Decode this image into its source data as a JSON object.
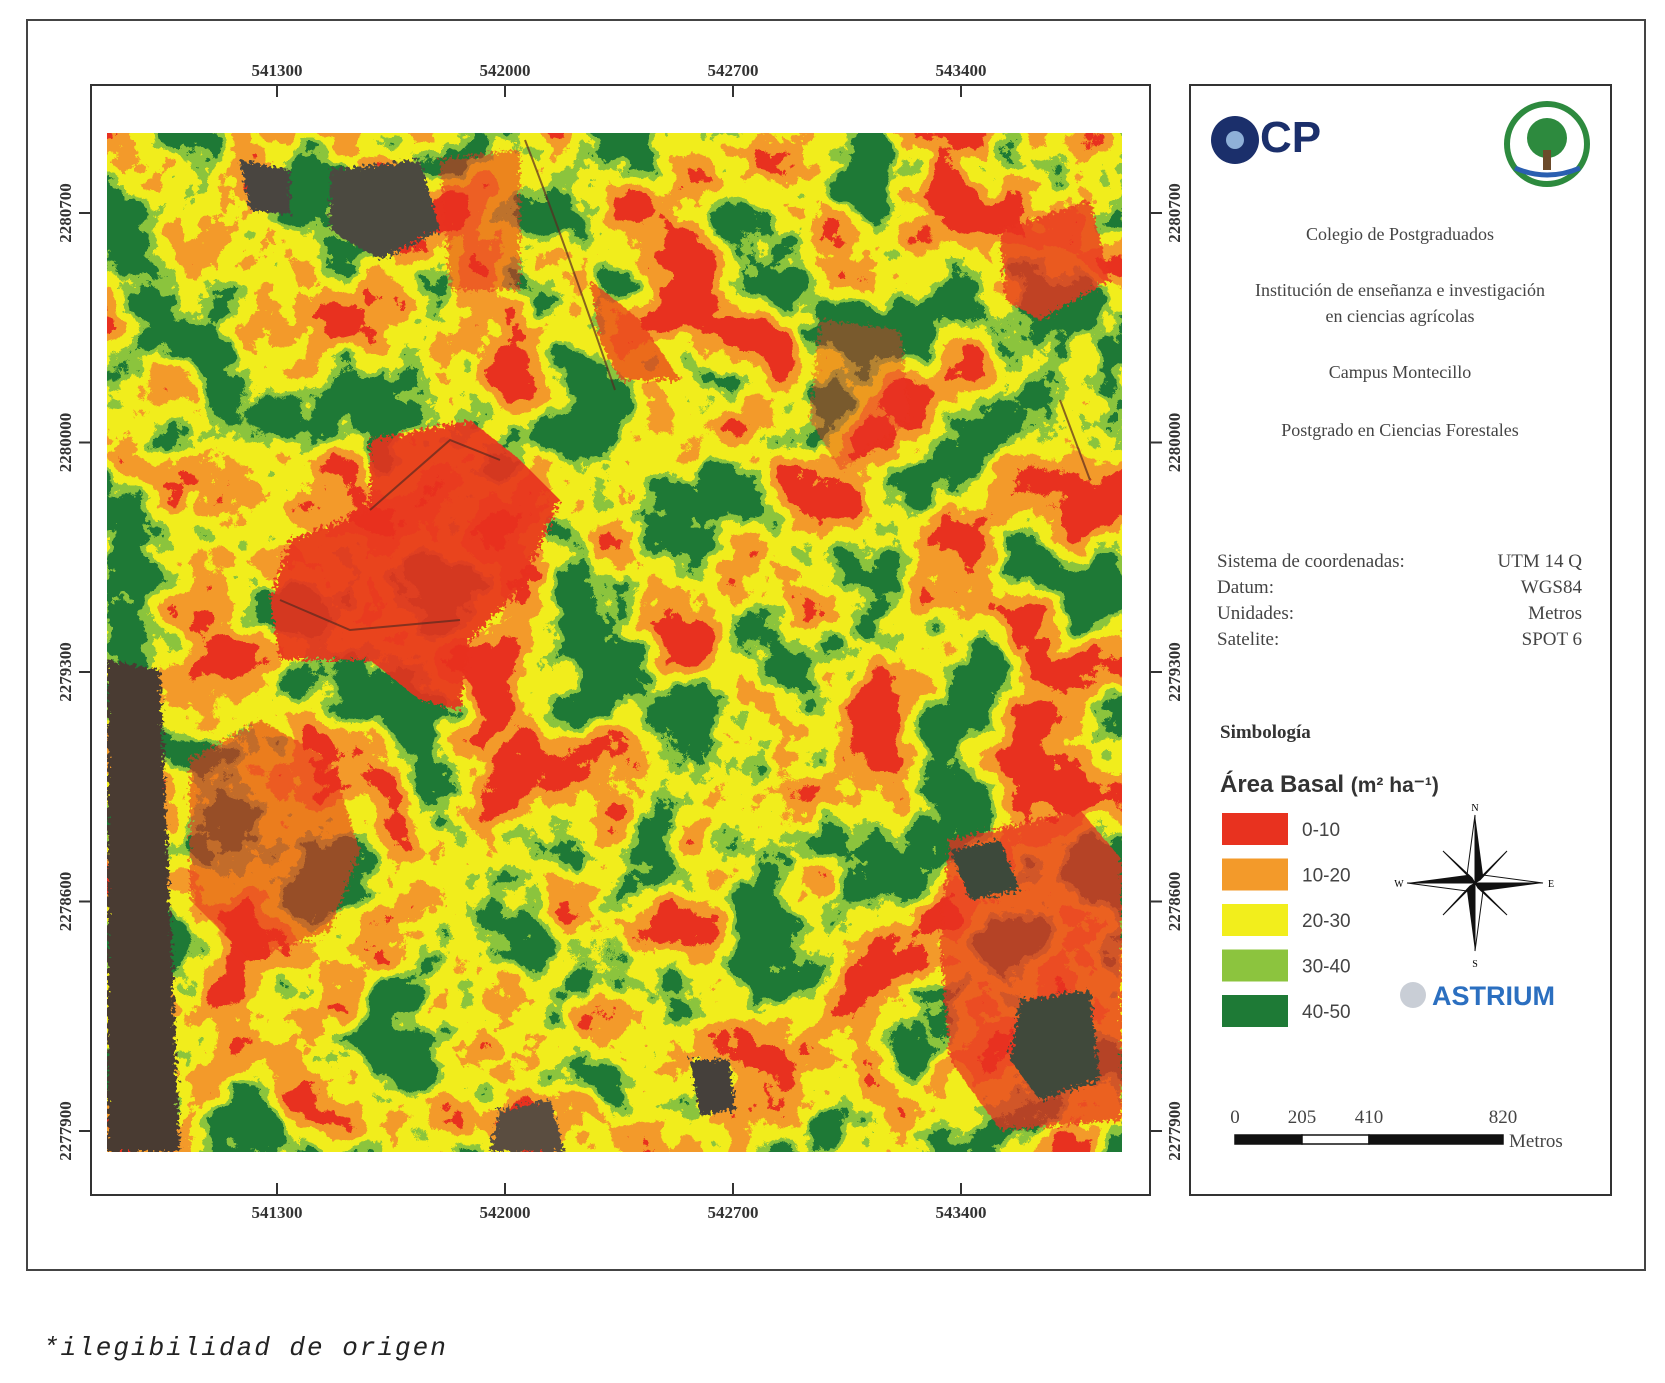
{
  "map": {
    "x_ticks": [
      541300,
      542000,
      542700,
      543400
    ],
    "y_ticks": [
      2280700,
      2280000,
      2279300,
      2278600,
      2277900
    ],
    "logo_left": "CP",
    "info": {
      "institution": "Colegio de Postgraduados",
      "description": [
        "Institución de enseñanza e investigación",
        "en ciencias agrícolas"
      ],
      "campus": "Campus Montecillo",
      "program": "Postgrado en Ciencias Forestales"
    },
    "specs": [
      {
        "label": "Sistema de coordenadas:",
        "value": "UTM 14 Q"
      },
      {
        "label": "Datum:",
        "value": "WGS84"
      },
      {
        "label": "Unidades:",
        "value": "Metros"
      },
      {
        "label": "Satelite:",
        "value": "SPOT 6"
      }
    ],
    "legend": {
      "heading": "Simbología",
      "title": "Área Basal",
      "unit": "(m² ha⁻¹)",
      "items": [
        {
          "label": "0-10",
          "color": "#e8321f"
        },
        {
          "label": "10-20",
          "color": "#f39a2a"
        },
        {
          "label": "20-30",
          "color": "#f2ee1c"
        },
        {
          "label": "30-40",
          "color": "#8cc43e"
        },
        {
          "label": "40-50",
          "color": "#1e7a36"
        }
      ]
    },
    "compass": {
      "n": "N",
      "e": "E",
      "s": "S",
      "w": "W"
    },
    "brand": "ASTRIUM",
    "scale_bar": {
      "ticks": [
        0,
        205,
        410,
        820
      ],
      "unit": "Metros"
    },
    "footnote": "*ilegibilidad de origen"
  }
}
